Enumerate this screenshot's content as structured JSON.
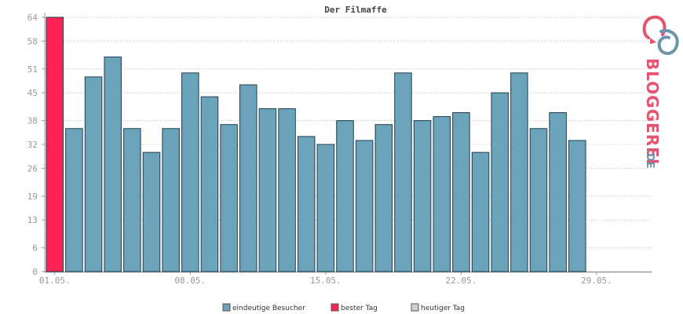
{
  "chart_data": {
    "type": "bar",
    "title": "Der Filmaffe",
    "xlabel": "",
    "ylabel": "",
    "ylim": [
      0,
      64
    ],
    "yticks": [
      0,
      6,
      13,
      19,
      26,
      32,
      38,
      45,
      51,
      58,
      64
    ],
    "x_tick_labels": [
      {
        "label": "01.05.",
        "day": 1
      },
      {
        "label": "08.05.",
        "day": 8
      },
      {
        "label": "15.05.",
        "day": 15
      },
      {
        "label": "22.05.",
        "day": 22
      },
      {
        "label": "29.05.",
        "day": 29
      }
    ],
    "days_in_month": 31,
    "series": [
      {
        "name": "eindeutige Besucher",
        "color": "#6ba3bb",
        "days": [
          2,
          3,
          4,
          5,
          6,
          7,
          8,
          9,
          10,
          11,
          12,
          13,
          14,
          15,
          16,
          17,
          18,
          19,
          20,
          21,
          22,
          23,
          24,
          25,
          26,
          27,
          28
        ],
        "values": [
          36,
          49,
          54,
          36,
          30,
          36,
          50,
          44,
          37,
          47,
          41,
          41,
          34,
          32,
          38,
          33,
          37,
          50,
          38,
          39,
          40,
          30,
          45,
          50,
          36,
          40,
          33
        ]
      },
      {
        "name": "bester Tag",
        "color": "#ff2255",
        "days": [
          1
        ],
        "values": [
          64
        ]
      },
      {
        "name": "heutiger Tag",
        "color": "#d0d0d0",
        "days": [],
        "values": []
      }
    ],
    "grid": true,
    "legend_position": "bottom"
  },
  "logo": {
    "text": "BLOGGEREI",
    "suffix": ".DE"
  }
}
